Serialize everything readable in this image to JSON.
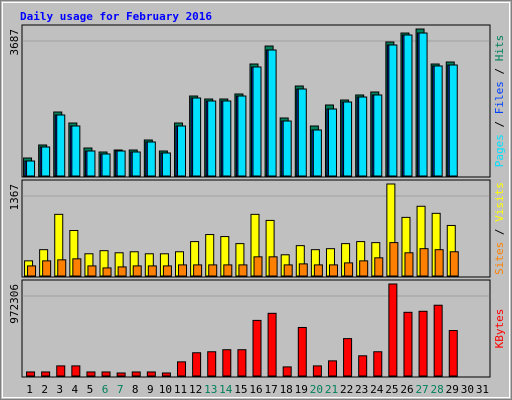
{
  "chart_data": {
    "type": "bar",
    "title": "Daily usage for February 2016",
    "legend_separator": " / ",
    "categories": [
      "1",
      "2",
      "3",
      "4",
      "5",
      "6",
      "7",
      "8",
      "9",
      "10",
      "11",
      "12",
      "13",
      "14",
      "15",
      "16",
      "17",
      "18",
      "19",
      "20",
      "21",
      "22",
      "23",
      "24",
      "25",
      "26",
      "27",
      "28",
      "29",
      "30",
      "31"
    ],
    "category_colors": [
      "#000000",
      "#000000",
      "#000000",
      "#000000",
      "#000000",
      "#00805c",
      "#00805c",
      "#000000",
      "#000000",
      "#000000",
      "#000000",
      "#000000",
      "#00805c",
      "#00805c",
      "#000000",
      "#000000",
      "#000000",
      "#000000",
      "#000000",
      "#00805c",
      "#00805c",
      "#000000",
      "#000000",
      "#000000",
      "#000000",
      "#000000",
      "#00805c",
      "#00805c",
      "#000000",
      "#000000",
      "#000000"
    ],
    "panels": [
      {
        "ylim": [
          0,
          3687
        ],
        "yticks": [
          3687
        ],
        "series": [
          {
            "name": "Hits",
            "color": "#00805c",
            "values": [
              451,
              778,
              1605,
              1329,
              702,
              602,
              652,
              652,
              903,
              627,
              1329,
              2006,
              1931,
              1931,
              2057,
              2809,
              3260,
              1455,
              2257,
              1254,
              1781,
              1906,
              2032,
              2107,
              3361,
              3586,
              3687,
              2809,
              2859,
              null,
              null
            ]
          },
          {
            "name": "Files",
            "color": "#0040ff",
            "values": [
              376,
              727,
              1530,
              1254,
              627,
              552,
              627,
              602,
              853,
              577,
              1254,
              1956,
              1881,
              1881,
              2006,
              2734,
              3160,
              1379,
              2182,
              1154,
              1680,
              1856,
              1981,
              2032,
              3286,
              3536,
              3586,
              2759,
              2784,
              null,
              null
            ]
          },
          {
            "name": "Pages",
            "color": "#00e0ff",
            "values": [
              376,
              727,
              1530,
              1254,
              627,
              552,
              627,
              602,
              853,
              577,
              1254,
              1956,
              1881,
              1881,
              2006,
              2734,
              3160,
              1379,
              2182,
              1154,
              1680,
              1856,
              1981,
              2032,
              3286,
              3536,
              3586,
              2759,
              2784,
              null,
              null
            ]
          }
        ]
      },
      {
        "ylim": [
          0,
          1367
        ],
        "yticks": [
          1367
        ],
        "series": [
          {
            "name": "Visits",
            "color": "#ffff00",
            "values": [
              225,
              391,
              916,
              676,
              330,
              376,
              345,
              360,
              330,
              330,
              360,
              511,
              616,
              586,
              481,
              916,
              826,
              315,
              451,
              391,
              406,
              481,
              511,
              496,
              1367,
              871,
              1036,
              931,
              751,
              null,
              null
            ]
          },
          {
            "name": "Sites",
            "color": "#ff8000",
            "values": [
              150,
              225,
              240,
              255,
              150,
              120,
              135,
              150,
              150,
              150,
              165,
              165,
              165,
              165,
              165,
              285,
              285,
              165,
              180,
              165,
              165,
              195,
              225,
              270,
              496,
              345,
              406,
              391,
              360,
              null,
              null
            ]
          }
        ]
      },
      {
        "ylim": [
          0,
          972306
        ],
        "yticks": [
          972306
        ],
        "series": [
          {
            "name": "KBytes",
            "color": "#ff0000",
            "values": [
              42740,
              42740,
              106850,
              106850,
              42740,
              42740,
              32055,
              42740,
              42740,
              32055,
              149590,
              245755,
              256440,
              277810,
              277810,
              587675,
              662470,
              96165,
              512880,
              106850,
              160275,
              395345,
              213700,
              256440,
              972306,
              673155,
              683840,
              747950,
              480825,
              null,
              null
            ]
          }
        ]
      }
    ]
  }
}
